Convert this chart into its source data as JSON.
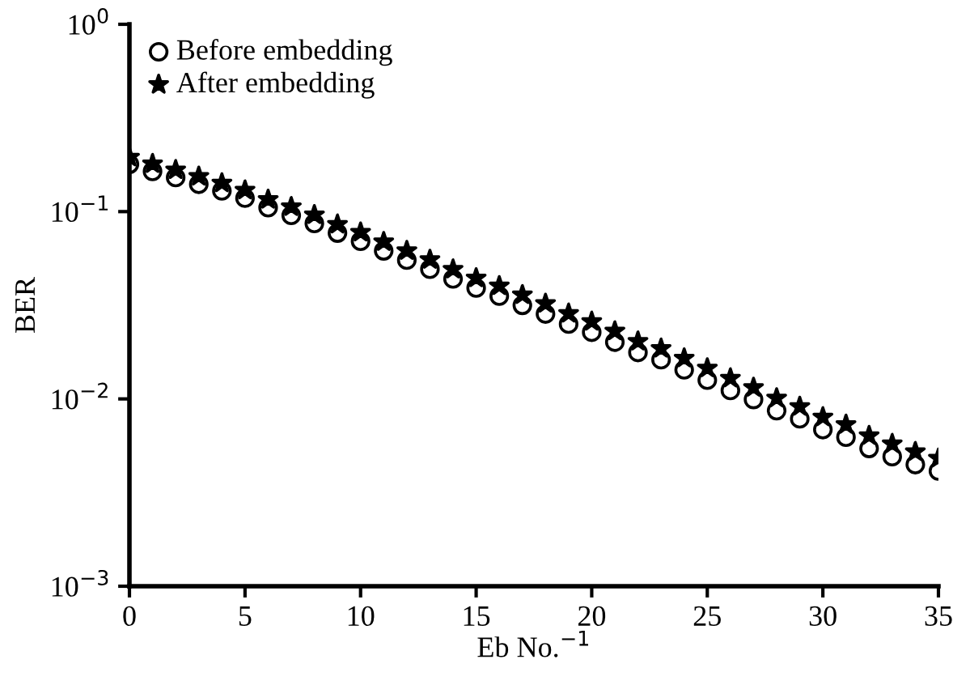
{
  "chart_data": {
    "type": "scatter",
    "xlabel": "Eb No.$^{−1}$",
    "ylabel": "BER",
    "x": [
      0,
      1,
      2,
      3,
      4,
      5,
      6,
      7,
      8,
      9,
      10,
      11,
      12,
      13,
      14,
      15,
      16,
      17,
      18,
      19,
      20,
      21,
      22,
      23,
      24,
      25,
      26,
      27,
      28,
      29,
      30,
      31,
      32,
      33,
      34,
      35
    ],
    "series": [
      {
        "name": "Before embedding",
        "color": "#000000",
        "marker": "circle",
        "values": [
          0.179,
          0.164,
          0.152,
          0.14,
          0.129,
          0.118,
          0.105,
          0.0955,
          0.0865,
          0.0768,
          0.0695,
          0.0617,
          0.0551,
          0.0493,
          0.0437,
          0.0391,
          0.0354,
          0.0316,
          0.0284,
          0.0251,
          0.0227,
          0.0201,
          0.0177,
          0.0162,
          0.0143,
          0.0126,
          0.0111,
          0.00993,
          0.00865,
          0.00783,
          0.00686,
          0.00625,
          0.00544,
          0.00492,
          0.00446,
          0.00412
        ]
      },
      {
        "name": "After embedding",
        "color": "#000000",
        "marker": "star",
        "values": [
          0.195,
          0.18,
          0.167,
          0.154,
          0.142,
          0.13,
          0.116,
          0.106,
          0.096,
          0.0855,
          0.0775,
          0.069,
          0.0618,
          0.0554,
          0.0492,
          0.0442,
          0.0401,
          0.0359,
          0.0323,
          0.0286,
          0.0259,
          0.023,
          0.0203,
          0.0186,
          0.0165,
          0.0146,
          0.0129,
          0.0115,
          0.0101,
          0.0091,
          0.008,
          0.0073,
          0.00636,
          0.00576,
          0.00522,
          0.00482
        ]
      }
    ],
    "log": "y",
    "xlim": [
      0,
      35
    ],
    "ylim": [
      0.001,
      1
    ],
    "xticks": [
      0,
      5,
      10,
      15,
      20,
      25,
      30,
      35
    ],
    "yticks": [
      {
        "value": 0.001,
        "label": "10$^{−3}$"
      },
      {
        "value": 0.01,
        "label": "10$^{−2}$"
      },
      {
        "value": 0.1,
        "label": "10$^{−1}$"
      },
      {
        "value": 1,
        "label": "10$^{0}$"
      }
    ],
    "grid": false,
    "legend": "top left"
  }
}
